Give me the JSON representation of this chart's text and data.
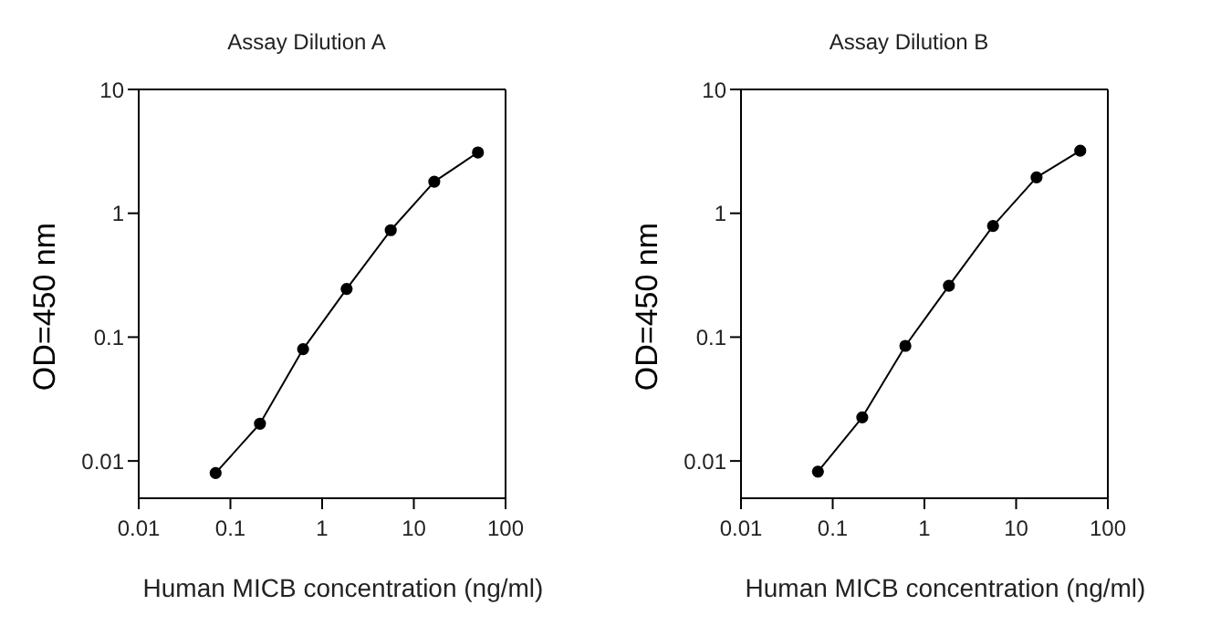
{
  "chart_data": [
    {
      "type": "line",
      "title": "Assay Dilution A",
      "xlabel": "Human MICB concentration (ng/ml)",
      "ylabel": "OD=450 nm",
      "log": "xy",
      "marker": "circle",
      "color": "#000000",
      "x": [
        0.069,
        0.21,
        0.62,
        1.85,
        5.6,
        16.7,
        50
      ],
      "values": [
        0.008,
        0.02,
        0.08,
        0.245,
        0.73,
        1.8,
        3.1
      ],
      "xlim": [
        0.01,
        100
      ],
      "xticks": [
        0.01,
        0.1,
        1,
        10,
        100
      ],
      "ylim": [
        0.005,
        10
      ],
      "yticks": [
        0.01,
        0.1,
        1,
        10
      ]
    },
    {
      "type": "line",
      "title": "Assay Dilution B",
      "xlabel": "Human MICB concentration (ng/ml)",
      "ylabel": "OD=450 nm",
      "log": "xy",
      "marker": "circle",
      "color": "#000000",
      "x": [
        0.069,
        0.21,
        0.62,
        1.85,
        5.6,
        16.7,
        50
      ],
      "values": [
        0.0082,
        0.0225,
        0.085,
        0.26,
        0.79,
        1.95,
        3.2
      ],
      "xlim": [
        0.01,
        100
      ],
      "xticks": [
        0.01,
        0.1,
        1,
        10,
        100
      ],
      "ylim": [
        0.005,
        10
      ],
      "yticks": [
        0.01,
        0.1,
        1,
        10
      ]
    }
  ]
}
